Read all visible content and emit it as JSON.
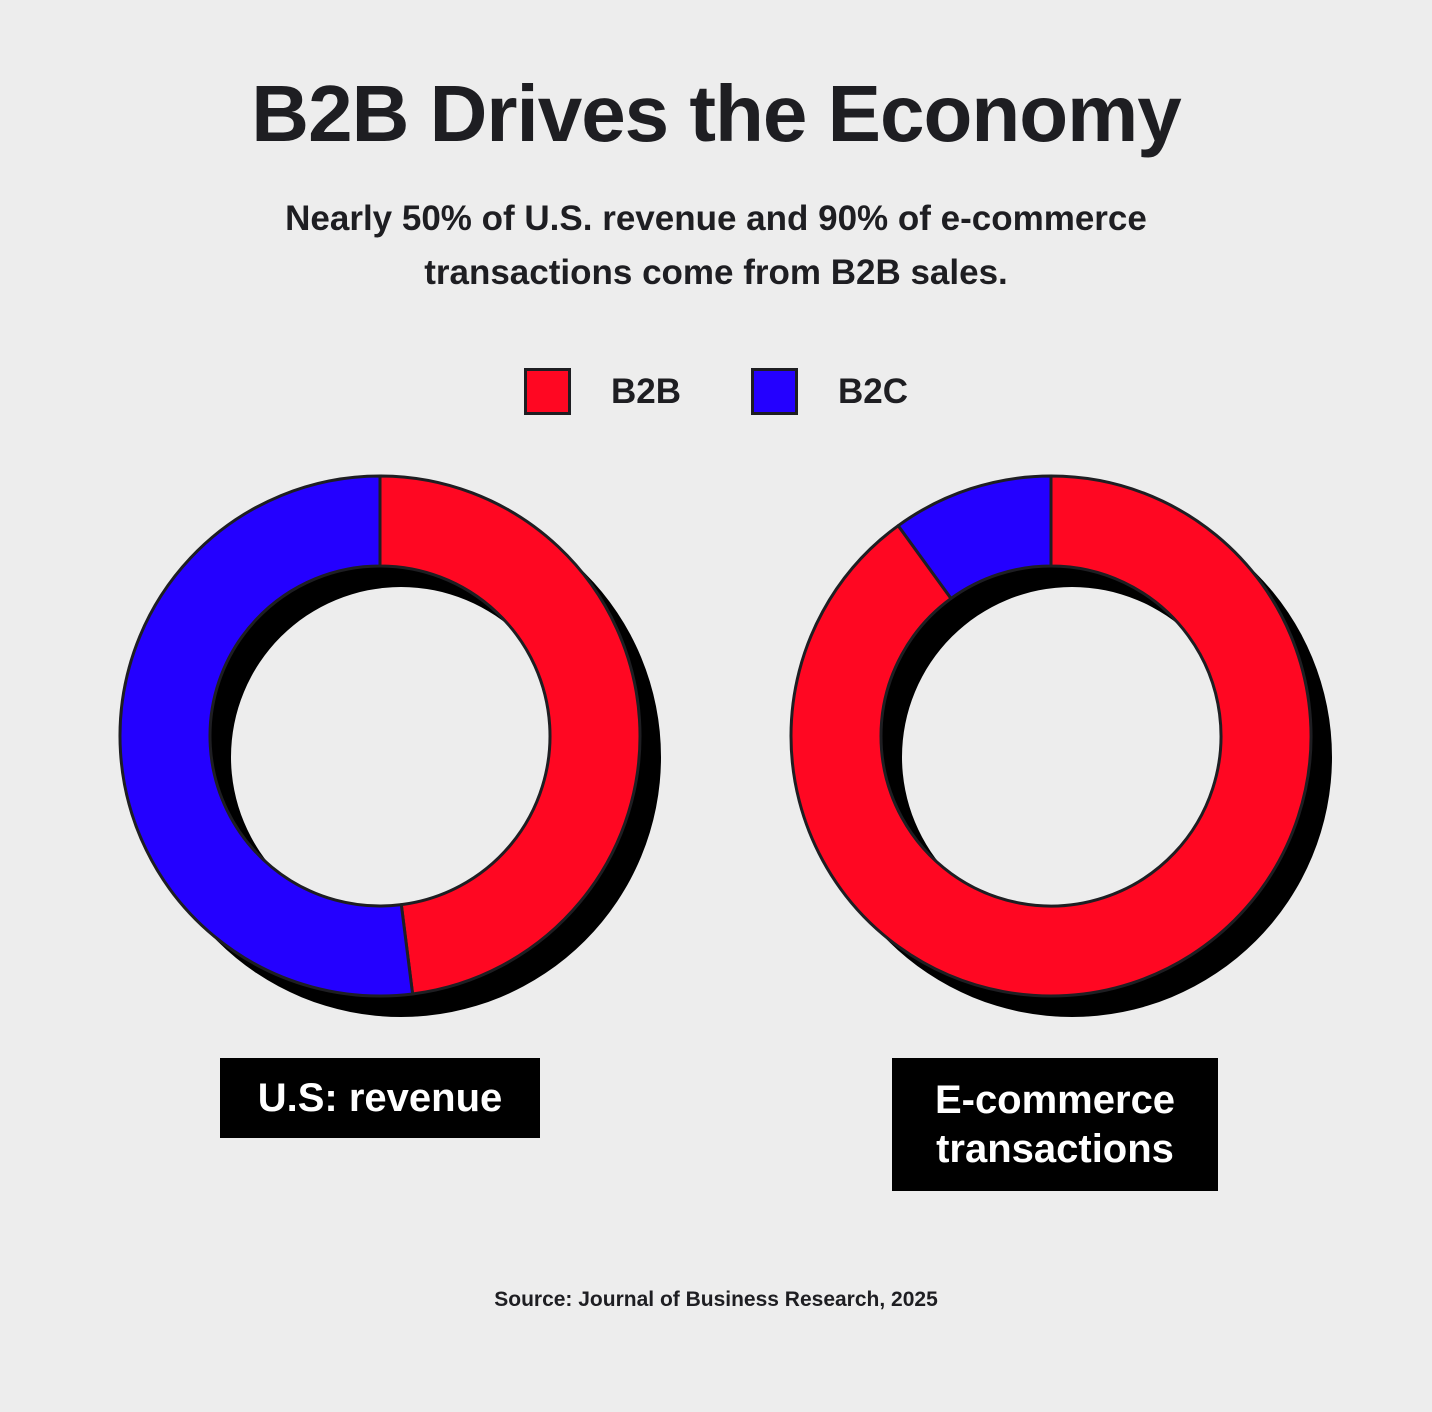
{
  "title": "B2B Drives the Economy",
  "subtitle": "Nearly 50% of U.S. revenue and 90% of e-commerce transactions come from B2B sales.",
  "legend": [
    {
      "label": "B2B",
      "color": "#ff0722"
    },
    {
      "label": "B2C",
      "color": "#2400ff"
    }
  ],
  "source": "Source: Journal of Business Research, 2025",
  "chart_data": [
    {
      "type": "pie",
      "variant": "donut",
      "label": "U.S: revenue",
      "categories": [
        "B2B",
        "B2C"
      ],
      "values": [
        48,
        52
      ],
      "colors": [
        "#ff0722",
        "#2400ff"
      ],
      "shadow_color": "#000000"
    },
    {
      "type": "pie",
      "variant": "donut",
      "label": "E-commerce transactions",
      "categories": [
        "B2B",
        "B2C"
      ],
      "values": [
        90,
        10
      ],
      "colors": [
        "#ff0722",
        "#2400ff"
      ],
      "shadow_color": "#000000"
    }
  ]
}
